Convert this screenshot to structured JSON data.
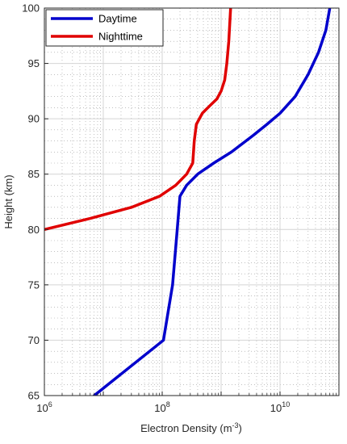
{
  "chart_data": {
    "type": "line",
    "xlabel": "Electron Density (m",
    "xlabel_sup": "-3",
    "xlabel_close": ")",
    "ylabel": "Height (km)",
    "x_scale": "log",
    "xlim": [
      1000000,
      100000000000
    ],
    "ylim": [
      65,
      100
    ],
    "x_tick_labels": [
      {
        "base": "10",
        "exp": "6",
        "value": 1000000
      },
      {
        "base": "10",
        "exp": "8",
        "value": 100000000
      },
      {
        "base": "10",
        "exp": "10",
        "value": 10000000000
      }
    ],
    "y_ticks": [
      65,
      70,
      75,
      80,
      85,
      90,
      95,
      100
    ],
    "grid": "major solid, minor dotted",
    "legend_position": "top-left",
    "series": [
      {
        "name": "Daytime",
        "color": "#0000cc",
        "points": [
          [
            7000000,
            65
          ],
          [
            105000000.0,
            70
          ],
          [
            150000000.0,
            75
          ],
          [
            180000000.0,
            80
          ],
          [
            200000000.0,
            83
          ],
          [
            260000000.0,
            84
          ],
          [
            400000000.0,
            85
          ],
          [
            750000000.0,
            86
          ],
          [
            1500000000.0,
            87
          ],
          [
            3500000000.0,
            88.5
          ],
          [
            6000000000.0,
            89.5
          ],
          [
            10000000000.0,
            90.5
          ],
          [
            18000000000.0,
            92
          ],
          [
            30000000000.0,
            94
          ],
          [
            45000000000.0,
            96
          ],
          [
            60000000000.0,
            98
          ],
          [
            70000000000.0,
            100
          ]
        ]
      },
      {
        "name": "Nighttime",
        "color": "#e00000",
        "points": [
          [
            1000000,
            80
          ],
          [
            6000000,
            81
          ],
          [
            30000000.0,
            82
          ],
          [
            90000000.0,
            83
          ],
          [
            170000000.0,
            84
          ],
          [
            260000000.0,
            85
          ],
          [
            330000000.0,
            86
          ],
          [
            350000000.0,
            88
          ],
          [
            380000000.0,
            89.5
          ],
          [
            480000000.0,
            90.5
          ],
          [
            650000000.0,
            91.2
          ],
          [
            850000000.0,
            91.8
          ],
          [
            1000000000.0,
            92.5
          ],
          [
            1150000000.0,
            93.5
          ],
          [
            1250000000.0,
            95
          ],
          [
            1350000000.0,
            97
          ],
          [
            1450000000.0,
            100
          ]
        ]
      }
    ]
  }
}
